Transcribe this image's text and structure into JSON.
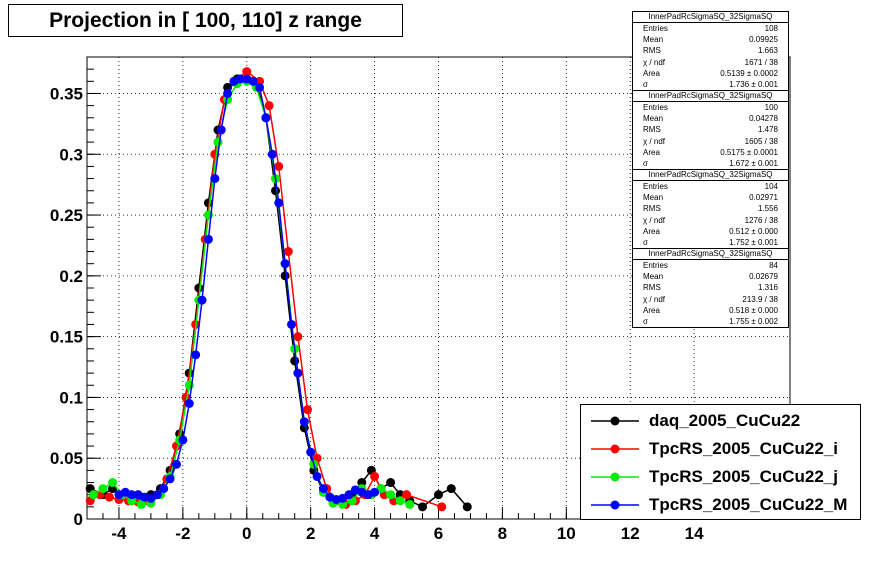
{
  "title": "Projection in [ 100, 110] z range",
  "stats_boxes": [
    {
      "title": "InnerPadRcSigmaSQ_32SigmaSQ",
      "rows": [
        {
          "label": "Entries",
          "value": "108"
        },
        {
          "label": "Mean",
          "value": "0.09925"
        },
        {
          "label": "RMS",
          "value": "1.663"
        },
        {
          "label": "χ  / ndf",
          "value": "1671 / 38"
        },
        {
          "label": "Area",
          "value": "0.5139 ± 0.0002"
        },
        {
          "label": "σ",
          "value": "1.736 ± 0.001"
        }
      ]
    },
    {
      "title": "InnerPadRcSigmaSQ_32SigmaSQ",
      "rows": [
        {
          "label": "Entries",
          "value": "100"
        },
        {
          "label": "Mean",
          "value": "0.04278"
        },
        {
          "label": "RMS",
          "value": "1.478"
        },
        {
          "label": "χ  / ndf",
          "value": "1605 / 38"
        },
        {
          "label": "Area",
          "value": "0.5175 ± 0.0001"
        },
        {
          "label": "σ",
          "value": "1.672 ± 0.001"
        }
      ]
    },
    {
      "title": "InnerPadRcSigmaSQ_32SigmaSQ",
      "rows": [
        {
          "label": "Entries",
          "value": "104"
        },
        {
          "label": "Mean",
          "value": "0.02971"
        },
        {
          "label": "RMS",
          "value": "1.556"
        },
        {
          "label": "χ  / ndf",
          "value": "1276 / 38"
        },
        {
          "label": "Area",
          "value": "0.512 ± 0.000"
        },
        {
          "label": "σ",
          "value": "1.752 ± 0.001"
        }
      ]
    },
    {
      "title": "InnerPadRcSigmaSQ_32SigmaSQ",
      "rows": [
        {
          "label": "Entries",
          "value": "84"
        },
        {
          "label": "Mean",
          "value": "0.02679"
        },
        {
          "label": "RMS",
          "value": "1.316"
        },
        {
          "label": "χ  / ndf",
          "value": "213.9 / 38"
        },
        {
          "label": "Area",
          "value": "0.518 ± 0.000"
        },
        {
          "label": "σ",
          "value": "1.755 ± 0.002"
        }
      ]
    }
  ],
  "chart_data": {
    "type": "scatter",
    "title": "Projection in [ 100, 110] z range",
    "xlim": [
      -5,
      17
    ],
    "ylim": [
      0,
      0.38
    ],
    "xticks": [
      -4,
      -2,
      0,
      2,
      4,
      6,
      8,
      10,
      12,
      14
    ],
    "yticks": [
      0,
      0.05,
      0.1,
      0.15,
      0.2,
      0.25,
      0.3,
      0.35
    ],
    "ytick_labels": [
      "0",
      "0.05",
      "0.1",
      "0.15",
      "0.2",
      "0.25",
      "0.3",
      "0.35"
    ],
    "grid": true,
    "legend_position": "bottom-right",
    "series": [
      {
        "name": "daq_2005_CuCu22",
        "color": "#000000",
        "x": [
          -4.9,
          -4.5,
          -4.2,
          -3.9,
          -3.6,
          -3.3,
          -3.0,
          -2.7,
          -2.4,
          -2.1,
          -1.8,
          -1.5,
          -1.2,
          -0.9,
          -0.6,
          -0.3,
          0.0,
          0.3,
          0.6,
          0.9,
          1.2,
          1.5,
          1.8,
          2.1,
          2.4,
          2.7,
          3.0,
          3.3,
          3.6,
          3.9,
          4.2,
          4.5,
          4.8,
          5.1,
          5.5,
          6.0,
          6.4,
          6.9
        ],
        "y": [
          0.025,
          0.02,
          0.025,
          0.02,
          0.018,
          0.018,
          0.02,
          0.025,
          0.04,
          0.07,
          0.12,
          0.19,
          0.26,
          0.32,
          0.355,
          0.362,
          0.362,
          0.358,
          0.33,
          0.27,
          0.2,
          0.13,
          0.075,
          0.04,
          0.022,
          0.015,
          0.014,
          0.02,
          0.03,
          0.04,
          0.025,
          0.03,
          0.02,
          0.015,
          0.01,
          0.02,
          0.025,
          0.01
        ]
      },
      {
        "name": "TpcRS_2005_CuCu22_i",
        "color": "#ff0000",
        "x": [
          -4.9,
          -4.6,
          -4.3,
          -4.0,
          -3.7,
          -3.4,
          -3.1,
          -2.8,
          -2.5,
          -2.2,
          -1.9,
          -1.6,
          -1.3,
          -1.0,
          -0.7,
          -0.4,
          0.0,
          0.4,
          0.7,
          1.0,
          1.3,
          1.6,
          1.9,
          2.2,
          2.5,
          2.8,
          3.1,
          3.4,
          3.7,
          4.0,
          4.3,
          4.6,
          5.0,
          6.1
        ],
        "y": [
          0.015,
          0.02,
          0.018,
          0.016,
          0.015,
          0.014,
          0.015,
          0.02,
          0.033,
          0.06,
          0.1,
          0.16,
          0.23,
          0.3,
          0.345,
          0.36,
          0.368,
          0.36,
          0.34,
          0.29,
          0.22,
          0.15,
          0.09,
          0.05,
          0.025,
          0.015,
          0.012,
          0.015,
          0.02,
          0.035,
          0.02,
          0.015,
          0.02,
          0.01
        ]
      },
      {
        "name": "TpcRS_2005_CuCu22_j",
        "color": "#00ee00",
        "x": [
          -4.8,
          -4.5,
          -4.2,
          -3.9,
          -3.6,
          -3.3,
          -3.0,
          -2.7,
          -2.4,
          -2.1,
          -1.8,
          -1.5,
          -1.2,
          -0.9,
          -0.6,
          -0.3,
          0.0,
          0.3,
          0.6,
          0.9,
          1.2,
          1.5,
          1.8,
          2.1,
          2.4,
          2.7,
          3.0,
          3.3,
          3.6,
          3.9,
          4.2,
          4.5,
          4.8,
          5.1
        ],
        "y": [
          0.02,
          0.025,
          0.03,
          0.02,
          0.015,
          0.012,
          0.013,
          0.02,
          0.035,
          0.065,
          0.11,
          0.18,
          0.25,
          0.31,
          0.345,
          0.358,
          0.36,
          0.355,
          0.33,
          0.28,
          0.21,
          0.14,
          0.08,
          0.045,
          0.022,
          0.013,
          0.012,
          0.015,
          0.025,
          0.02,
          0.025,
          0.02,
          0.015,
          0.012
        ]
      },
      {
        "name": "TpcRS_2005_CuCu22_M",
        "color": "#0000ff",
        "x": [
          -4.0,
          -3.8,
          -3.6,
          -3.4,
          -3.2,
          -3.0,
          -2.8,
          -2.6,
          -2.4,
          -2.2,
          -2.0,
          -1.8,
          -1.6,
          -1.4,
          -1.2,
          -1.0,
          -0.8,
          -0.6,
          -0.4,
          -0.2,
          0.0,
          0.2,
          0.4,
          0.6,
          0.8,
          1.0,
          1.2,
          1.4,
          1.6,
          1.8,
          2.0,
          2.2,
          2.4,
          2.6,
          2.8,
          3.0,
          3.2,
          3.4,
          3.6,
          3.8,
          4.0
        ],
        "y": [
          0.02,
          0.022,
          0.02,
          0.02,
          0.018,
          0.017,
          0.02,
          0.025,
          0.033,
          0.045,
          0.065,
          0.095,
          0.135,
          0.18,
          0.23,
          0.28,
          0.32,
          0.35,
          0.36,
          0.362,
          0.362,
          0.36,
          0.355,
          0.33,
          0.3,
          0.26,
          0.21,
          0.16,
          0.12,
          0.08,
          0.055,
          0.035,
          0.025,
          0.018,
          0.016,
          0.017,
          0.02,
          0.024,
          0.022,
          0.02,
          0.022
        ]
      }
    ]
  }
}
